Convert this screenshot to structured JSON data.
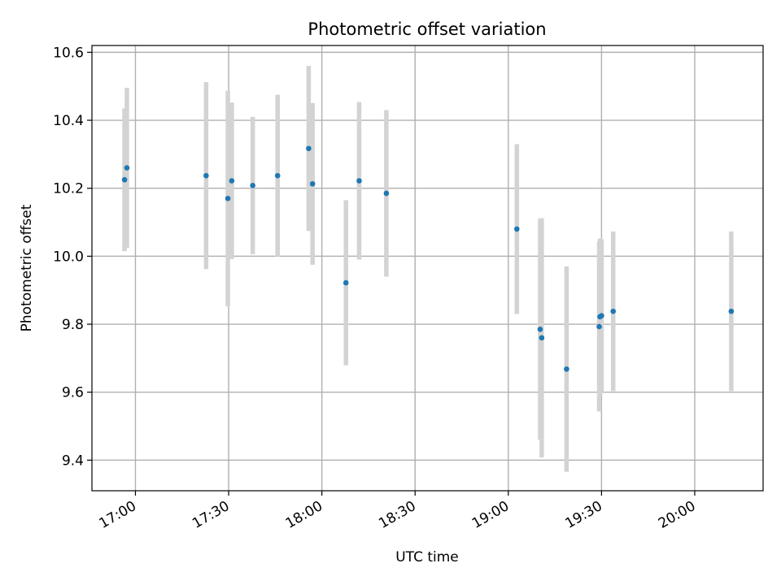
{
  "chart_data": {
    "type": "scatter",
    "title": "Photometric offset variation",
    "xlabel": "UTC time",
    "ylabel": "Photometric offset",
    "x_is_time": true,
    "xlim": [
      "16:46",
      "20:22"
    ],
    "ylim": [
      9.31,
      10.62
    ],
    "xticks": [
      "17:00",
      "17:30",
      "18:00",
      "18:30",
      "19:00",
      "19:30",
      "20:00"
    ],
    "yticks": [
      "9.4",
      "9.6",
      "9.8",
      "10.0",
      "10.2",
      "10.4",
      "10.6"
    ],
    "grid": true,
    "colors": {
      "point": "#1f77b4",
      "errorbar": "#d3d3d3",
      "grid": "#b0b0b0",
      "frame": "#000000"
    },
    "series": [
      {
        "points": [
          {
            "x": "16:56:30",
            "y": 10.225,
            "err": 0.21
          },
          {
            "x": "16:57:15",
            "y": 10.26,
            "err": 0.235
          },
          {
            "x": "17:22:45",
            "y": 10.237,
            "err": 0.275
          },
          {
            "x": "17:29:45",
            "y": 10.17,
            "err": 0.317
          },
          {
            "x": "17:31:00",
            "y": 10.222,
            "err": 0.23
          },
          {
            "x": "17:37:45",
            "y": 10.208,
            "err": 0.202
          },
          {
            "x": "17:45:45",
            "y": 10.237,
            "err": 0.238
          },
          {
            "x": "17:55:45",
            "y": 10.317,
            "err": 0.243
          },
          {
            "x": "17:57:00",
            "y": 10.213,
            "err": 0.238
          },
          {
            "x": "18:07:45",
            "y": 9.922,
            "err": 0.243
          },
          {
            "x": "18:12:00",
            "y": 10.222,
            "err": 0.232
          },
          {
            "x": "18:20:45",
            "y": 10.185,
            "err": 0.245
          },
          {
            "x": "19:02:45",
            "y": 10.08,
            "err": 0.25
          },
          {
            "x": "19:10:15",
            "y": 9.785,
            "err": 0.325
          },
          {
            "x": "19:10:45",
            "y": 9.76,
            "err": 0.352
          },
          {
            "x": "19:18:45",
            "y": 9.668,
            "err": 0.302
          },
          {
            "x": "19:29:15",
            "y": 9.793,
            "err": 0.25
          },
          {
            "x": "19:29:30",
            "y": 9.822,
            "err": 0.23
          },
          {
            "x": "19:30:00",
            "y": 9.825,
            "err": 0.225
          },
          {
            "x": "19:33:45",
            "y": 9.838,
            "err": 0.235
          },
          {
            "x": "20:11:45",
            "y": 9.838,
            "err": 0.235
          }
        ]
      }
    ]
  }
}
